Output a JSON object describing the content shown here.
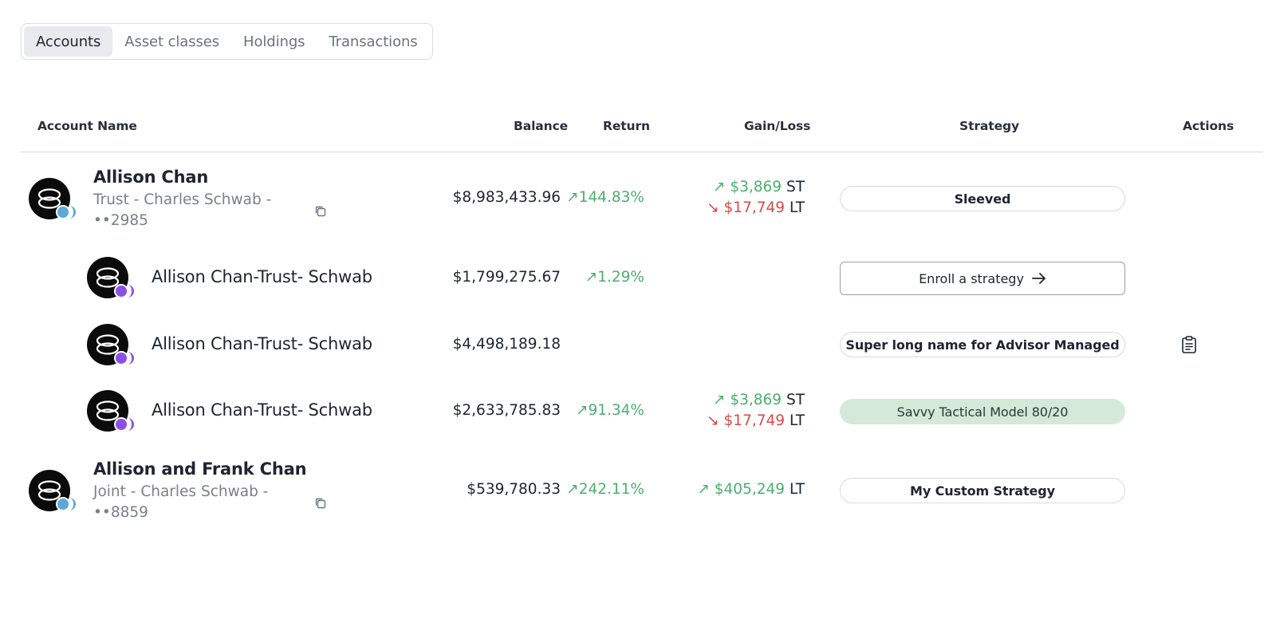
{
  "tabs": [
    {
      "label": "Accounts",
      "active": true
    },
    {
      "label": "Asset classes",
      "active": false
    },
    {
      "label": "Holdings",
      "active": false
    },
    {
      "label": "Transactions",
      "active": false
    }
  ],
  "table": {
    "headers": {
      "account_name": "Account Name",
      "balance": "Balance",
      "return": "Return",
      "gain_loss": "Gain/Loss",
      "strategy": "Strategy",
      "actions": "Actions"
    },
    "rows": [
      {
        "type": "parent",
        "name": "Allison Chan",
        "subtitle": "Trust - Charles Schwab - ••2985",
        "balance": "$8,983,433.96",
        "return": "144.83%",
        "gain_st": "$3,869",
        "gain_st_label": "ST",
        "loss_lt": "$17,749",
        "loss_lt_label": "LT",
        "strategy": "Sleeved"
      },
      {
        "type": "child",
        "name": "Allison Chan-Trust- Schwab",
        "balance": "$1,799,275.67",
        "return": "1.29%",
        "strategy_button": "Enroll a strategy"
      },
      {
        "type": "child",
        "name": "Allison Chan-Trust- Schwab",
        "balance": "$4,498,189.18",
        "strategy": "Super long name for Advisor Managed",
        "action_icon": "clipboard-icon"
      },
      {
        "type": "child",
        "name": "Allison Chan-Trust- Schwab",
        "balance": "$2,633,785.83",
        "return": "91.34%",
        "gain_st": "$3,869",
        "gain_st_label": "ST",
        "loss_lt": "$17,749",
        "loss_lt_label": "LT",
        "strategy": "Savvy Tactical Model 80/20"
      },
      {
        "type": "parent",
        "name": "Allison and Frank Chan",
        "subtitle": "Joint - Charles Schwab - ••8859",
        "balance": "$539,780.33",
        "return": "242.11%",
        "gain_lt": "$405,249",
        "gain_lt_label": "LT",
        "strategy": "My Custom Strategy"
      }
    ]
  },
  "colors": {
    "gain": "#4caf6e",
    "loss": "#d94a4a",
    "parent_badge": "#5aa9d6",
    "child_badge": "#8b4fe8",
    "strategy_highlight": "#d4e9d8"
  }
}
